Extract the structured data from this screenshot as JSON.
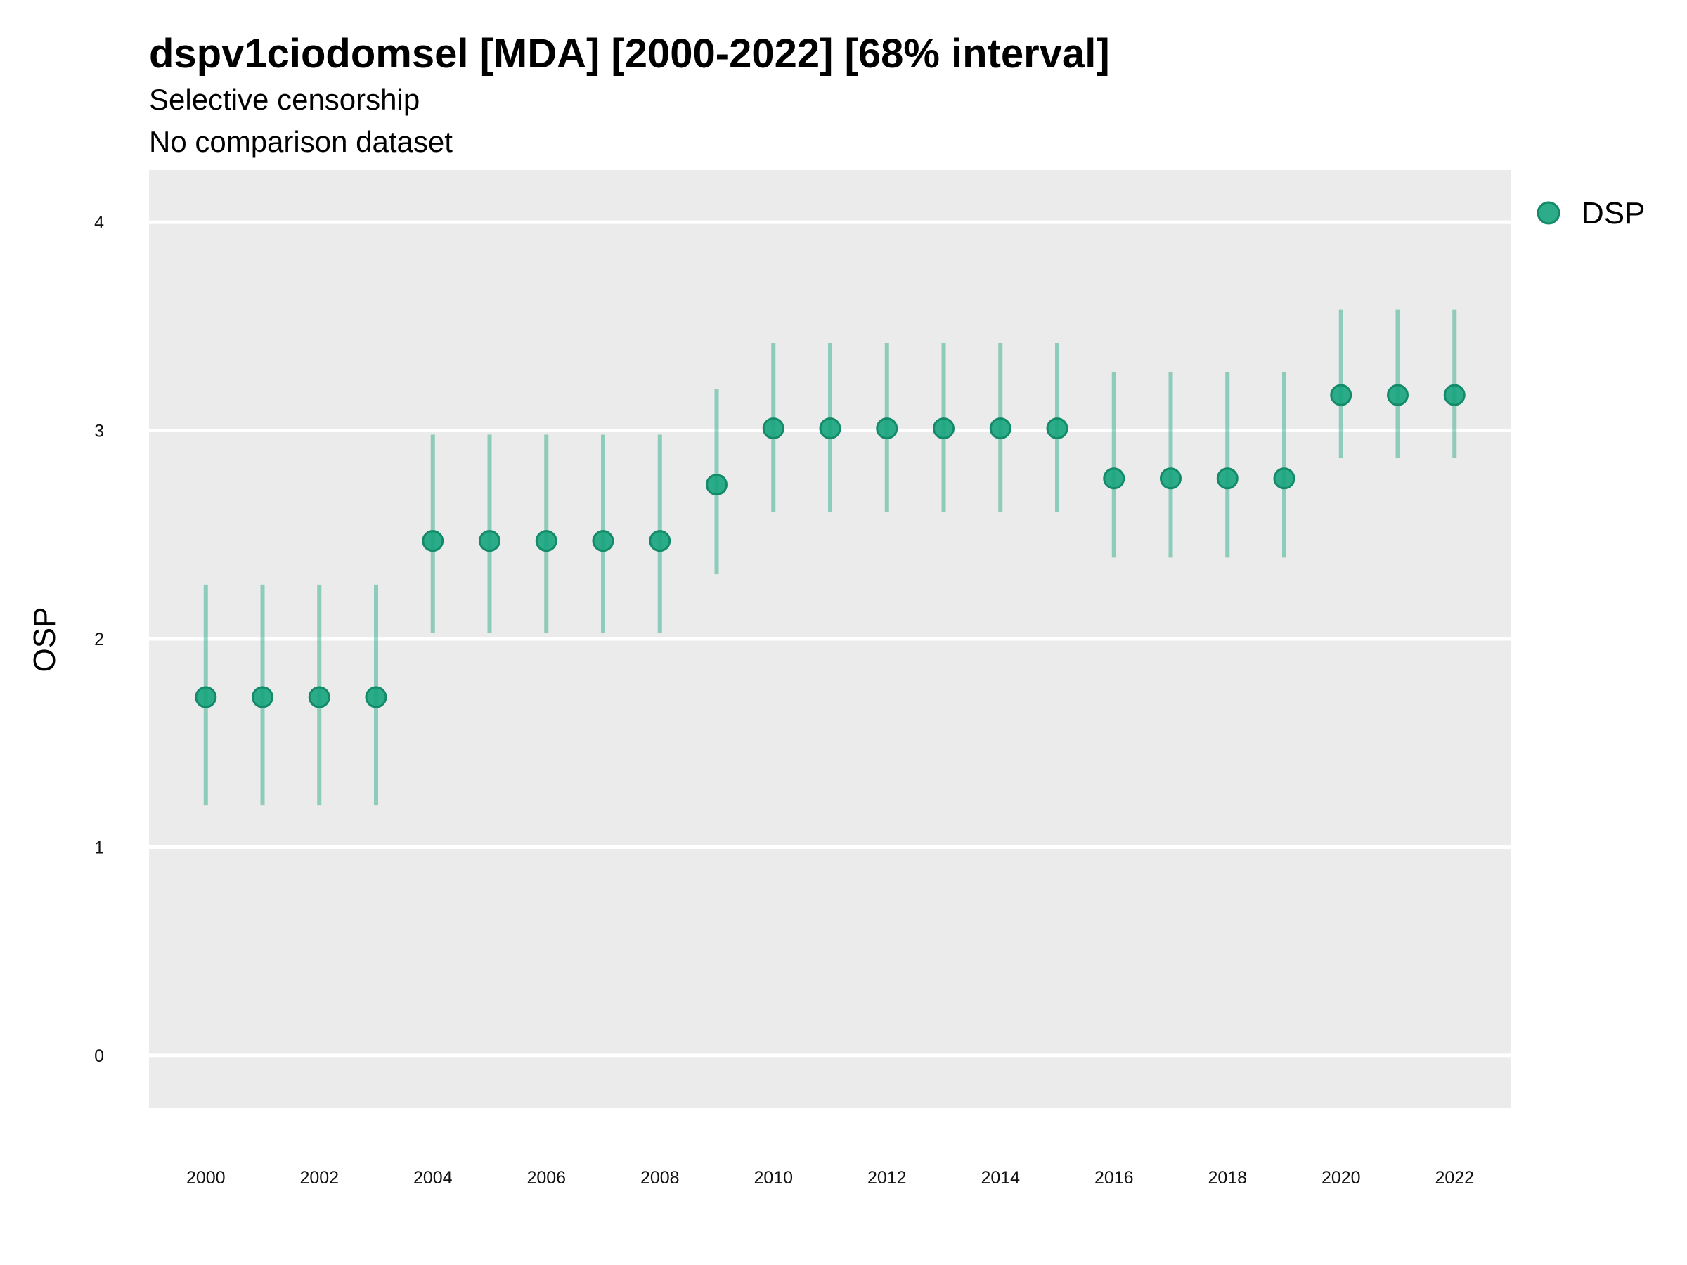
{
  "chart_data": {
    "type": "scatter",
    "title": "dspv1ciodomsel [MDA] [2000-2022] [68% interval]",
    "subtitle": "Selective censorship",
    "subtitle2": "No comparison dataset",
    "xlabel": "",
    "ylabel": "OSP",
    "ylim": [
      -0.25,
      4.25
    ],
    "xlim": [
      1999,
      2023
    ],
    "y_ticks": [
      0,
      1,
      2,
      3,
      4
    ],
    "x_ticks": [
      2000,
      2002,
      2004,
      2006,
      2008,
      2010,
      2012,
      2014,
      2016,
      2018,
      2020,
      2022
    ],
    "grid": true,
    "legend_position": "right",
    "series": [
      {
        "name": "DSP",
        "color": "#1aa57f",
        "points": [
          {
            "x": 2000,
            "y": 1.72,
            "lower": 1.2,
            "upper": 2.26
          },
          {
            "x": 2001,
            "y": 1.72,
            "lower": 1.2,
            "upper": 2.26
          },
          {
            "x": 2002,
            "y": 1.72,
            "lower": 1.2,
            "upper": 2.26
          },
          {
            "x": 2003,
            "y": 1.72,
            "lower": 1.2,
            "upper": 2.26
          },
          {
            "x": 2004,
            "y": 2.47,
            "lower": 2.03,
            "upper": 2.98
          },
          {
            "x": 2005,
            "y": 2.47,
            "lower": 2.03,
            "upper": 2.98
          },
          {
            "x": 2006,
            "y": 2.47,
            "lower": 2.03,
            "upper": 2.98
          },
          {
            "x": 2007,
            "y": 2.47,
            "lower": 2.03,
            "upper": 2.98
          },
          {
            "x": 2008,
            "y": 2.47,
            "lower": 2.03,
            "upper": 2.98
          },
          {
            "x": 2009,
            "y": 2.74,
            "lower": 2.31,
            "upper": 3.2
          },
          {
            "x": 2010,
            "y": 3.01,
            "lower": 2.61,
            "upper": 3.42
          },
          {
            "x": 2011,
            "y": 3.01,
            "lower": 2.61,
            "upper": 3.42
          },
          {
            "x": 2012,
            "y": 3.01,
            "lower": 2.61,
            "upper": 3.42
          },
          {
            "x": 2013,
            "y": 3.01,
            "lower": 2.61,
            "upper": 3.42
          },
          {
            "x": 2014,
            "y": 3.01,
            "lower": 2.61,
            "upper": 3.42
          },
          {
            "x": 2015,
            "y": 3.01,
            "lower": 2.61,
            "upper": 3.42
          },
          {
            "x": 2016,
            "y": 2.77,
            "lower": 2.39,
            "upper": 3.28
          },
          {
            "x": 2017,
            "y": 2.77,
            "lower": 2.39,
            "upper": 3.28
          },
          {
            "x": 2018,
            "y": 2.77,
            "lower": 2.39,
            "upper": 3.28
          },
          {
            "x": 2019,
            "y": 2.77,
            "lower": 2.39,
            "upper": 3.28
          },
          {
            "x": 2020,
            "y": 3.17,
            "lower": 2.87,
            "upper": 3.58
          },
          {
            "x": 2021,
            "y": 3.17,
            "lower": 2.87,
            "upper": 3.58
          },
          {
            "x": 2022,
            "y": 3.17,
            "lower": 2.87,
            "upper": 3.58
          }
        ]
      }
    ]
  }
}
